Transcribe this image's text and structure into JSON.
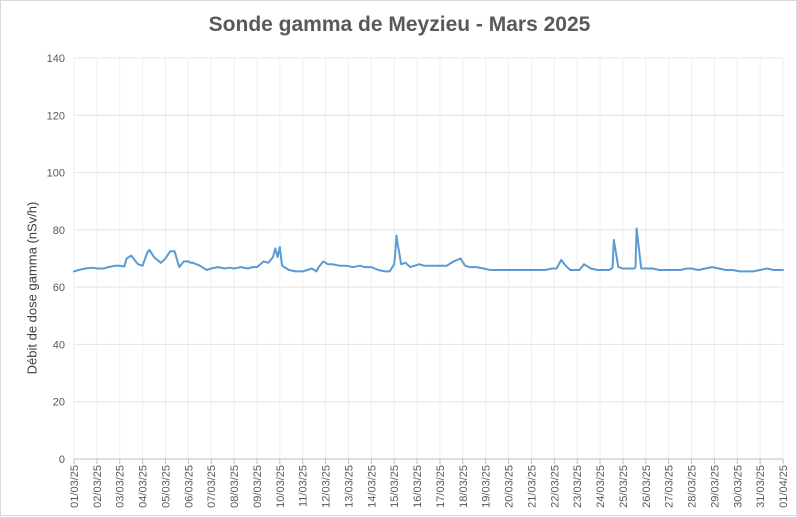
{
  "chart_data": {
    "type": "line",
    "title": "Sonde gamma de Meyzieu - Mars 2025",
    "xlabel": "",
    "ylabel": "Débit de dose gamma (nSv/h)",
    "ylim": [
      0,
      140
    ],
    "yticks": [
      0,
      20,
      40,
      60,
      80,
      100,
      120,
      140
    ],
    "grid": true,
    "legend": "none",
    "line_color": "#5b9bd5",
    "x_tick_labels": [
      "01/03/25",
      "02/03/25",
      "03/03/25",
      "04/03/25",
      "05/03/25",
      "06/03/25",
      "07/03/25",
      "08/03/25",
      "09/03/25",
      "10/03/25",
      "11/03/25",
      "12/03/25",
      "13/03/25",
      "14/03/25",
      "15/03/25",
      "16/03/25",
      "17/03/25",
      "18/03/25",
      "19/03/25",
      "20/03/25",
      "21/03/25",
      "22/03/25",
      "23/03/25",
      "24/03/25",
      "25/03/25",
      "26/03/25",
      "27/03/25",
      "28/03/25",
      "29/03/25",
      "30/03/25",
      "31/03/25",
      "01/04/25"
    ],
    "series": [
      {
        "x": [
          0,
          0.2,
          0.5,
          0.8,
          1.0,
          1.3,
          1.5,
          1.8,
          2.0,
          2.2,
          2.3,
          2.5,
          2.8,
          3.0,
          3.2,
          3.3,
          3.5,
          3.8,
          4.0,
          4.2,
          4.4,
          4.6,
          4.8,
          5.0,
          5.1,
          5.2,
          5.5,
          5.8,
          6.0,
          6.3,
          6.6,
          6.8,
          7.0,
          7.3,
          7.6,
          7.8,
          8.0,
          8.3,
          8.5,
          8.7,
          8.8,
          8.9,
          9.0,
          9.05,
          9.1,
          9.2,
          9.4,
          9.7,
          10.0,
          10.2,
          10.4,
          10.6,
          10.7,
          10.9,
          11.1,
          11.3,
          11.6,
          11.9,
          12.2,
          12.5,
          12.7,
          13.0,
          13.3,
          13.6,
          13.8,
          14.0,
          14.05,
          14.1,
          14.15,
          14.2,
          14.3,
          14.5,
          14.7,
          14.9,
          15.1,
          15.3,
          15.5,
          15.8,
          16.0,
          16.3,
          16.6,
          16.9,
          17.1,
          17.3,
          17.6,
          17.9,
          18.2,
          18.5,
          18.8,
          19.1,
          19.4,
          19.7,
          20.0,
          20.3,
          20.6,
          20.9,
          21.0,
          21.1,
          21.3,
          21.5,
          21.7,
          21.9,
          22.0,
          22.1,
          22.3,
          22.6,
          22.9,
          23.2,
          23.4,
          23.5,
          23.55,
          23.6,
          23.8,
          24.0,
          24.3,
          24.5,
          24.55,
          24.6,
          24.8,
          25.0,
          25.3,
          25.6,
          25.9,
          26.2,
          26.5,
          26.8,
          27.0,
          27.3,
          27.6,
          27.9,
          28.2,
          28.5,
          28.8,
          29.1,
          29.4,
          29.7,
          30.0,
          30.3,
          30.6,
          31.0
        ],
        "y": [
          65.5,
          66,
          66.5,
          66.8,
          66.5,
          66.5,
          67,
          67.5,
          67.5,
          67.2,
          70,
          71,
          68,
          67.5,
          72,
          73,
          70.5,
          68.5,
          70,
          72.5,
          72.5,
          67,
          69,
          69,
          68.5,
          68.5,
          67.5,
          66,
          66.5,
          67,
          66.5,
          66.8,
          66.5,
          67,
          66.5,
          67,
          67,
          69,
          68.5,
          70.5,
          73.5,
          70.5,
          74,
          70.5,
          67.5,
          67,
          66,
          65.5,
          65.5,
          66,
          66.5,
          65.5,
          67,
          69,
          68,
          68,
          67.5,
          67.5,
          67,
          67.5,
          67,
          67,
          66,
          65.5,
          65.5,
          68,
          72,
          78,
          75,
          73,
          68,
          68.5,
          67,
          67.5,
          68,
          67.5,
          67.5,
          67.5,
          67.5,
          67.5,
          69,
          70,
          67.5,
          67,
          67,
          66.5,
          66,
          66,
          66,
          66,
          66,
          66,
          66,
          66,
          66,
          66.5,
          66.5,
          66.5,
          69.5,
          67.5,
          66,
          66,
          66,
          66,
          68,
          66.5,
          66,
          66,
          66,
          66.5,
          67,
          76.5,
          67,
          66.5,
          66.5,
          66.5,
          67,
          80.5,
          66.5,
          66.5,
          66.5,
          66,
          66,
          66,
          66,
          66.5,
          66.5,
          66,
          66.5,
          67,
          66.5,
          66,
          66,
          65.5,
          65.5,
          65.5,
          66,
          66.5,
          66,
          66
        ]
      }
    ]
  }
}
